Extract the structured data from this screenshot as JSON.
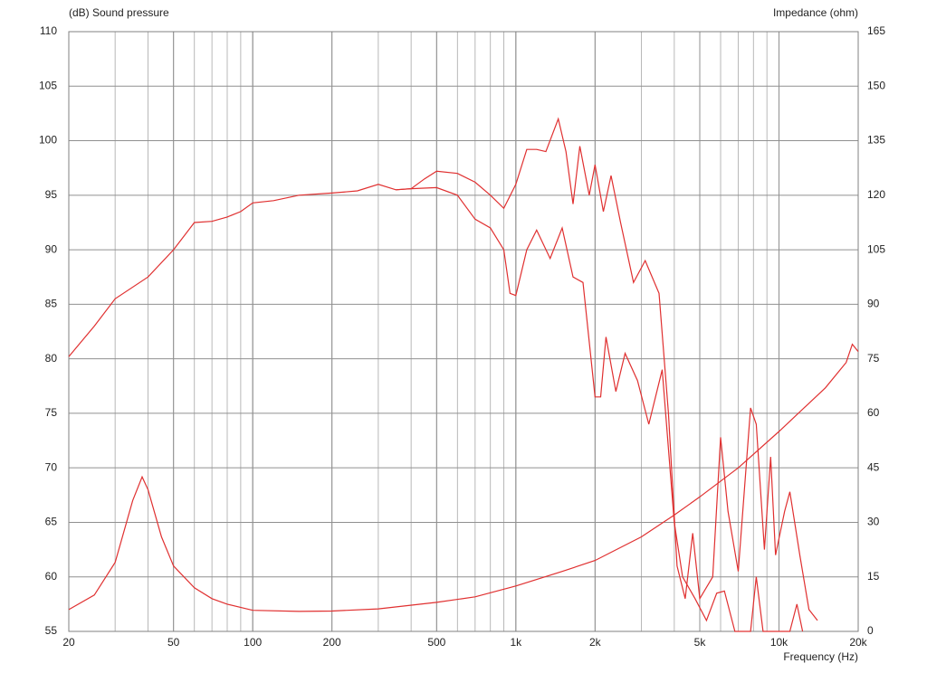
{
  "chart_data": {
    "type": "line",
    "ylabel": "(dB)  Sound pressure",
    "y2label": "Impedance  (ohm)",
    "xlabel": "Frequency  (Hz)",
    "xscale": "log",
    "grid": true,
    "xlim": [
      20,
      20000
    ],
    "xticks": [
      20,
      50,
      100,
      200,
      500,
      {
        "value": 1000,
        "label": "1k"
      },
      {
        "value": 2000,
        "label": "2k"
      },
      {
        "value": 5000,
        "label": "5k"
      },
      {
        "value": 10000,
        "label": "10k"
      },
      {
        "value": 20000,
        "label": "20k"
      }
    ],
    "ylim": [
      55,
      110
    ],
    "yticks": [
      55,
      60,
      65,
      70,
      75,
      80,
      85,
      90,
      95,
      100,
      105,
      110
    ],
    "y2lim": [
      0,
      165
    ],
    "y2ticks": [
      0,
      15,
      30,
      45,
      60,
      75,
      90,
      105,
      120,
      135,
      150,
      165
    ],
    "series": [
      {
        "color": "#e03030",
        "x": [
          20,
          25,
          30,
          40,
          50,
          60,
          70,
          80,
          90,
          100,
          120,
          150,
          200,
          250,
          300,
          350,
          400,
          450,
          500,
          600,
          700,
          800,
          900,
          1000,
          1100,
          1200,
          1300,
          1450,
          1550,
          1650,
          1750,
          1900,
          2000,
          2150,
          2300,
          2500,
          2800,
          3100,
          3500,
          3800,
          4100,
          4400,
          4700,
          5000,
          5600,
          6000,
          6400,
          7000,
          7800,
          8200,
          8800,
          9300,
          9700,
          10500,
          11000,
          12000,
          13000,
          14000
        ],
        "values": [
          80.2,
          83,
          85.5,
          87.5,
          90,
          92.5,
          92.6,
          93,
          93.5,
          94.3,
          94.5,
          95,
          95.2,
          95.4,
          96,
          95.5,
          95.6,
          96.5,
          97.2,
          97,
          96.2,
          95,
          93.8,
          96,
          99.2,
          99.2,
          99,
          102,
          99,
          94.2,
          99.5,
          95,
          97.8,
          93.5,
          96.8,
          92.5,
          87,
          89,
          86,
          75,
          61,
          58,
          64,
          58,
          60,
          72.8,
          66,
          60.5,
          75.5,
          74,
          62.5,
          71,
          62,
          66,
          67.8,
          62,
          57,
          56
        ]
      },
      {
        "color": "#e03030",
        "x": [
          350,
          400,
          500,
          600,
          700,
          800,
          900,
          950,
          1000,
          1100,
          1200,
          1350,
          1500,
          1650,
          1800,
          2000,
          2100,
          2200,
          2400,
          2600,
          2900,
          3200,
          3600,
          4000,
          4300,
          4800,
          5300,
          5800,
          6200,
          6800,
          7800,
          8200,
          8700,
          11000,
          11700,
          12300
        ],
        "values": [
          95.5,
          95.6,
          95.7,
          95,
          92.8,
          92,
          90,
          86,
          85.8,
          90,
          91.8,
          89.2,
          92,
          87.5,
          87,
          76.5,
          76.5,
          82,
          77,
          80.5,
          78,
          74,
          79,
          65,
          60,
          58,
          56,
          58.5,
          58.7,
          55,
          55,
          60,
          55,
          55,
          57.5,
          55
        ]
      },
      {
        "color": "#e03030",
        "axis": "y2",
        "x": [
          20,
          25,
          30,
          35,
          38,
          40,
          45,
          50,
          60,
          70,
          80,
          100,
          150,
          200,
          300,
          500,
          700,
          1000,
          1500,
          2000,
          3000,
          4000,
          5000,
          7000,
          10000,
          15000,
          18000,
          19000,
          20000
        ],
        "values": [
          6,
          10,
          19,
          36,
          42.5,
          39,
          26,
          18,
          12,
          9,
          7.5,
          5.8,
          5.5,
          5.6,
          6.2,
          8,
          9.5,
          12.5,
          16.5,
          19.5,
          26,
          32,
          37,
          45,
          55,
          67,
          74,
          79,
          77
        ]
      }
    ]
  }
}
